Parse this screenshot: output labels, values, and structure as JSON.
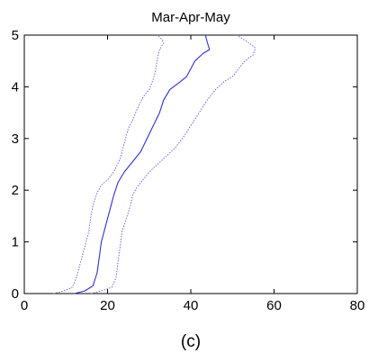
{
  "chart_data": {
    "type": "line",
    "title": "Mar-Apr-May",
    "caption": "(c)",
    "xlabel": "",
    "ylabel": "",
    "xlim": [
      0,
      80
    ],
    "ylim": [
      0,
      5
    ],
    "xticks": [
      "0",
      "20",
      "40",
      "60",
      "80"
    ],
    "yticks": [
      "0",
      "1",
      "2",
      "3",
      "4",
      "5"
    ],
    "grid": false,
    "legend": false,
    "series": [
      {
        "style": "dotted",
        "color": "#5b5bd6",
        "points": [
          [
            7,
            0
          ],
          [
            9.5,
            0.05
          ],
          [
            11.5,
            0.12
          ],
          [
            12.5,
            0.3
          ],
          [
            13.5,
            0.6
          ],
          [
            14.5,
            0.9
          ],
          [
            15.5,
            1.2
          ],
          [
            16,
            1.5
          ],
          [
            16.5,
            1.7
          ],
          [
            17.5,
            1.95
          ],
          [
            18.5,
            2.1
          ],
          [
            20,
            2.2
          ],
          [
            21.5,
            2.35
          ],
          [
            23,
            2.6
          ],
          [
            24,
            2.9
          ],
          [
            24.5,
            3.05
          ],
          [
            25,
            3.2
          ],
          [
            26,
            3.35
          ],
          [
            27,
            3.55
          ],
          [
            28.5,
            3.8
          ],
          [
            30,
            3.95
          ],
          [
            31,
            4.15
          ],
          [
            31.5,
            4.3
          ],
          [
            32,
            4.55
          ],
          [
            32.5,
            4.72
          ],
          [
            33.5,
            4.85
          ],
          [
            33,
            4.92
          ],
          [
            32,
            5.0
          ]
        ]
      },
      {
        "style": "solid",
        "color": "#3030cc",
        "points": [
          [
            12,
            0
          ],
          [
            14.5,
            0.05
          ],
          [
            16.5,
            0.15
          ],
          [
            17.5,
            0.4
          ],
          [
            18,
            0.7
          ],
          [
            18.5,
            1.0
          ],
          [
            19.5,
            1.3
          ],
          [
            20.5,
            1.6
          ],
          [
            21.5,
            1.9
          ],
          [
            22.5,
            2.15
          ],
          [
            24,
            2.35
          ],
          [
            26,
            2.55
          ],
          [
            28,
            2.75
          ],
          [
            29.5,
            3.0
          ],
          [
            31,
            3.25
          ],
          [
            32.5,
            3.5
          ],
          [
            33.5,
            3.75
          ],
          [
            35,
            3.95
          ],
          [
            37.5,
            4.1
          ],
          [
            39,
            4.2
          ],
          [
            40,
            4.35
          ],
          [
            41,
            4.5
          ],
          [
            43,
            4.65
          ],
          [
            44.5,
            4.72
          ],
          [
            44,
            4.85
          ],
          [
            43.5,
            5.0
          ]
        ]
      },
      {
        "style": "dotted",
        "color": "#5b5bd6",
        "points": [
          [
            16,
            0
          ],
          [
            18.5,
            0.05
          ],
          [
            21,
            0.12
          ],
          [
            22,
            0.3
          ],
          [
            22.5,
            0.6
          ],
          [
            23,
            0.9
          ],
          [
            23.5,
            1.2
          ],
          [
            24.5,
            1.45
          ],
          [
            25.5,
            1.7
          ],
          [
            26,
            1.9
          ],
          [
            27,
            2.05
          ],
          [
            28.5,
            2.2
          ],
          [
            30,
            2.35
          ],
          [
            32,
            2.5
          ],
          [
            34,
            2.65
          ],
          [
            36,
            2.8
          ],
          [
            38,
            3.0
          ],
          [
            40,
            3.25
          ],
          [
            42,
            3.5
          ],
          [
            44,
            3.75
          ],
          [
            46,
            3.95
          ],
          [
            48,
            4.1
          ],
          [
            50,
            4.2
          ],
          [
            51.5,
            4.35
          ],
          [
            53,
            4.5
          ],
          [
            55,
            4.62
          ],
          [
            55.5,
            4.75
          ],
          [
            54,
            4.85
          ],
          [
            52,
            4.95
          ],
          [
            51,
            5.0
          ]
        ]
      }
    ]
  }
}
